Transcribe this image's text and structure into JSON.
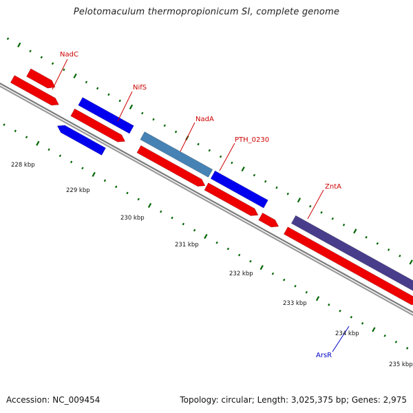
{
  "title": "Pelotomaculum thermopropionicum SI, complete genome",
  "footer": {
    "accession": "Accession: NC_009454",
    "summary": "Topology: circular; Length: 3,025,375 bp; Genes: 2,975"
  },
  "colors": {
    "forward_gene": "#0000ee",
    "reverse_gene": "#ee0000",
    "steelblue_gene": "#4682b4",
    "purple_gene": "#483d8b",
    "backbone": "#808080",
    "tick": "#006400",
    "label_red": "#cc0000",
    "label_blue": "#0000cc"
  },
  "kbp_labels": [
    "228 kbp",
    "229 kbp",
    "230 kbp",
    "231 kbp",
    "232 kbp",
    "233 kbp",
    "234 kbp",
    "235 kbp"
  ],
  "gene_labels": [
    {
      "name": "NadC",
      "color": "label_red"
    },
    {
      "name": "NifS",
      "color": "label_red"
    },
    {
      "name": "NadA",
      "color": "label_red"
    },
    {
      "name": "PTH_0230",
      "color": "label_red"
    },
    {
      "name": "ZntA",
      "color": "label_red"
    },
    {
      "name": "ArsR",
      "color": "label_blue"
    }
  ]
}
